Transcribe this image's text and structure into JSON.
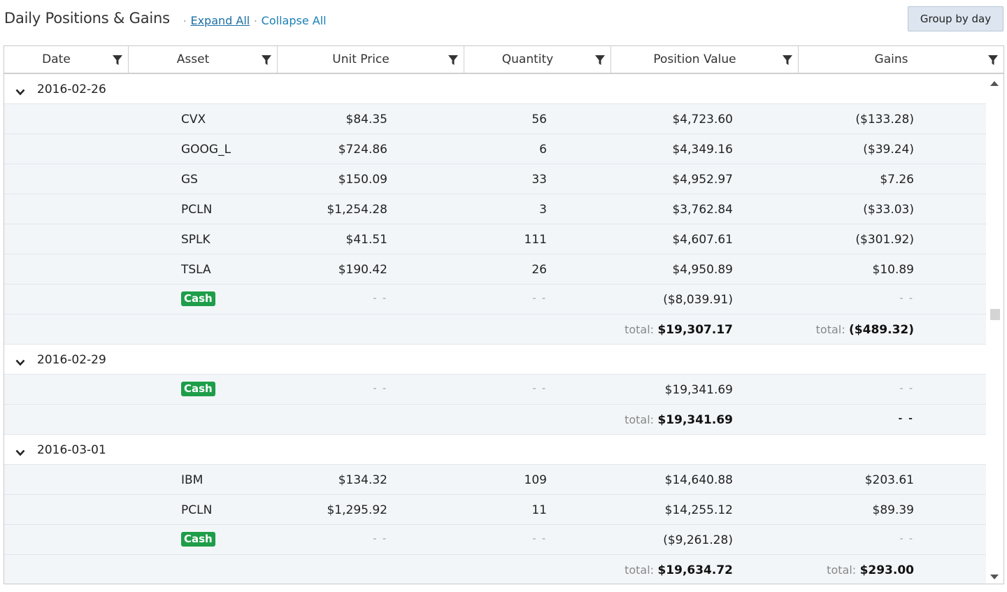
{
  "header": {
    "title": "Daily Positions & Gains",
    "separator": "·",
    "expand_all": "Expand All",
    "collapse_all": "Collapse All",
    "group_button": "Group by day"
  },
  "columns": [
    "Date",
    "Asset",
    "Unit Price",
    "Quantity",
    "Position Value",
    "Gains"
  ],
  "groups": [
    {
      "date": "2016-02-26",
      "rows": [
        {
          "asset": "CVX",
          "price": "$84.35",
          "qty": "56",
          "value": "$4,723.60",
          "gains": "($133.28)"
        },
        {
          "asset": "GOOG_L",
          "price": "$724.86",
          "qty": "6",
          "value": "$4,349.16",
          "gains": "($39.24)"
        },
        {
          "asset": "GS",
          "price": "$150.09",
          "qty": "33",
          "value": "$4,952.97",
          "gains": "$7.26"
        },
        {
          "asset": "PCLN",
          "price": "$1,254.28",
          "qty": "3",
          "value": "$3,762.84",
          "gains": "($33.03)"
        },
        {
          "asset": "SPLK",
          "price": "$41.51",
          "qty": "111",
          "value": "$4,607.61",
          "gains": "($301.92)"
        },
        {
          "asset": "TSLA",
          "price": "$190.42",
          "qty": "26",
          "value": "$4,950.89",
          "gains": "$10.89"
        },
        {
          "cash": "Cash",
          "price": "- -",
          "qty": "- -",
          "value": "($8,039.91)",
          "gains": "- -"
        }
      ],
      "total": {
        "value_label": "total:",
        "value": "$19,307.17",
        "gains_label": "total:",
        "gains": "($489.32)"
      }
    },
    {
      "date": "2016-02-29",
      "rows": [
        {
          "cash": "Cash",
          "price": "- -",
          "qty": "- -",
          "value": "$19,341.69",
          "gains": "- -"
        }
      ],
      "total": {
        "value_label": "total:",
        "value": "$19,341.69",
        "gains_label": "",
        "gains": "- -"
      }
    },
    {
      "date": "2016-03-01",
      "rows": [
        {
          "asset": "IBM",
          "price": "$134.32",
          "qty": "109",
          "value": "$14,640.88",
          "gains": "$203.61"
        },
        {
          "asset": "PCLN",
          "price": "$1,295.92",
          "qty": "11",
          "value": "$14,255.12",
          "gains": "$89.39"
        },
        {
          "cash": "Cash",
          "price": "- -",
          "qty": "- -",
          "value": "($9,261.28)",
          "gains": "- -"
        }
      ],
      "total": {
        "value_label": "total:",
        "value": "$19,634.72",
        "gains_label": "total:",
        "gains": "$293.00"
      }
    }
  ],
  "colors": {
    "cash_badge": "#1e9e4a",
    "link": "#1a7fb5",
    "row_bg": "#f3f6f9"
  }
}
